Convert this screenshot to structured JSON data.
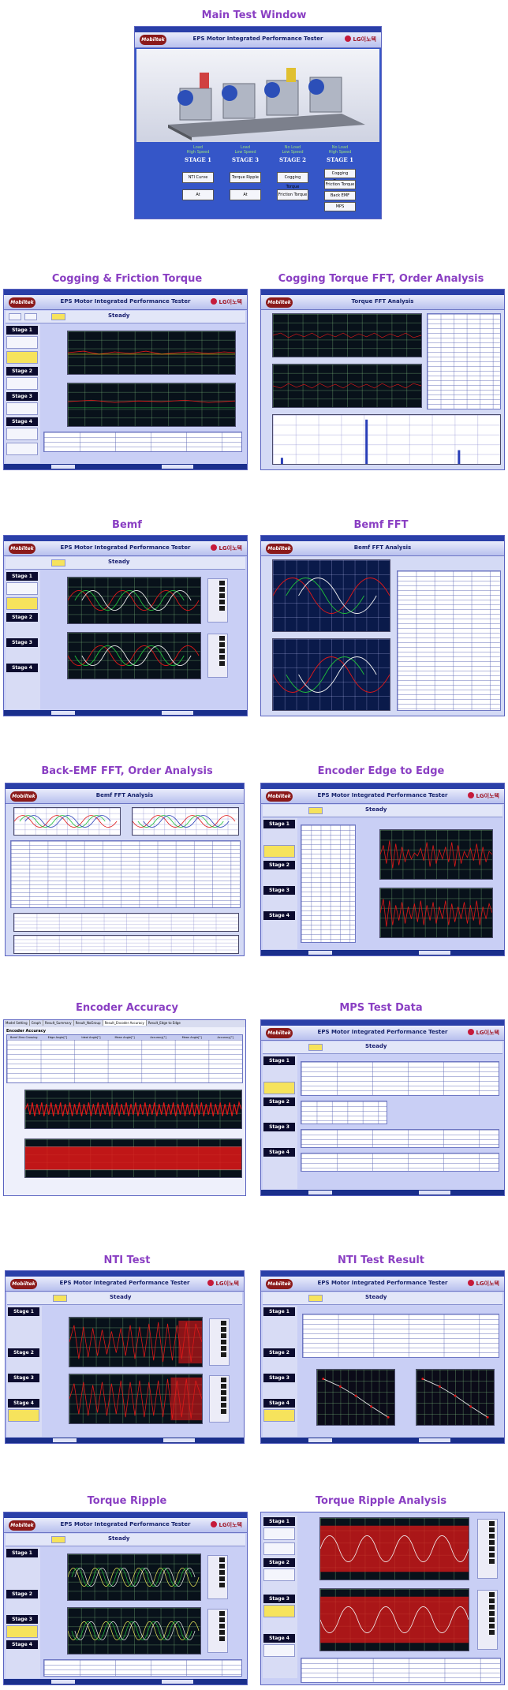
{
  "sections": {
    "main_test_window": "Main Test Window",
    "cogging_friction": "Cogging & Friction Torque",
    "cogging_fft": "Cogging  Torque FFT, Order Analysis",
    "bemf": "Bemf",
    "bemf_fft": "Bemf  FFT",
    "backemf_fft": "Back-EMF FFT, Order Analysis",
    "encoder_edge": "Encoder Edge to Edge",
    "encoder_accuracy": "Encoder Accuracy",
    "mps": "MPS Test Data",
    "nti": "NTI Test",
    "nti_result": "NTI Test Result",
    "torque_ripple": "Torque  Ripple",
    "torque_ripple_analysis": "Torque  Ripple Analysis"
  },
  "main_window": {
    "app_title": "EPS Motor Integrated Performance Tester",
    "logo": "Mobiltek",
    "brand": "LG이노텍",
    "stages": [
      {
        "label": "STAGE 1",
        "load": "Load",
        "speed": "High Speed",
        "buttons": [
          "NTI Curve",
          "At"
        ]
      },
      {
        "label": "STAGE 3",
        "load": "Load",
        "speed": "Low Speed",
        "buttons": [
          "Torque Ripple",
          "At"
        ]
      },
      {
        "label": "STAGE 2",
        "load": "No Load",
        "speed": "Low Speed",
        "buttons": [
          "Cogging Torque",
          "Friction Torque"
        ]
      },
      {
        "label": "STAGE 1",
        "load": "No Load",
        "speed": "High Speed",
        "buttons": [
          "Cogging Torque",
          "Friction Torque",
          "Back EMF",
          "MPS"
        ]
      }
    ]
  },
  "screens": {
    "tester_title": "EPS Motor Integrated Performance Tester",
    "fft_title": "Torque FFT Analysis",
    "bemf_fft_title": "Bemf FFT Analysis",
    "backemf_title": "Bemf FFT Analysis",
    "status": "Steady",
    "stage_labels": [
      "Stage 1",
      "Stage 2",
      "Stage 3",
      "Stage 4"
    ]
  },
  "encoder_accuracy": {
    "tabs": [
      "Model Setting",
      "Graph",
      "Result_Summary",
      "Result_NoGroup",
      "Result_Encoder Accuracy",
      "Result_Edge to Edge"
    ],
    "heading": "Encoder Accuracy",
    "columns": [
      "Bemf Zero Crossing",
      "Edge Angle[°]",
      "Ideal Angle[°]",
      "Mean Angle[°]",
      "Accuracy[°]",
      "Mean Angle[°]",
      "Accuracy[°]"
    ]
  },
  "colors": {
    "section_title": "#8a3fc3",
    "panel": "#c9cff5",
    "header_blue": "#2a3fa8",
    "stage_black": "#0b0b2e",
    "button_yellow": "#f6e35c",
    "trace_red": "#e01818",
    "trace_green": "#1fbf3a"
  }
}
